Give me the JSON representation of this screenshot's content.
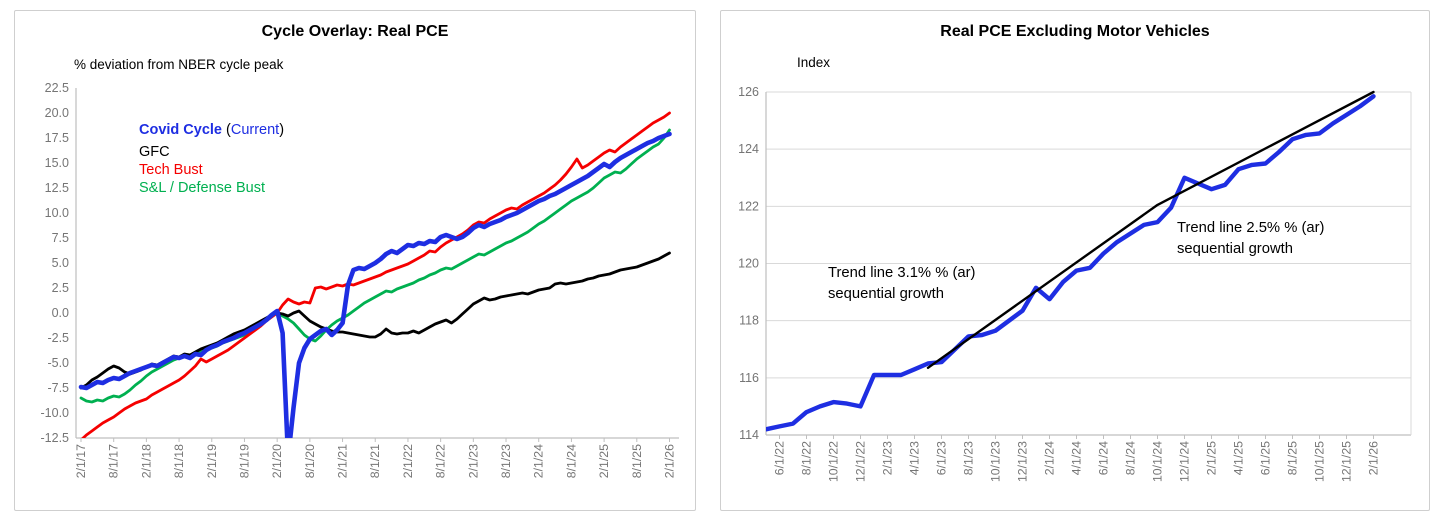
{
  "page": {
    "background": "#ffffff"
  },
  "colors": {
    "covid_blue": "#1E2EE2",
    "gfc_black": "#000000",
    "tech_red": "#F50000",
    "sl_green": "#00B050",
    "axis_line": "#bfbfbf",
    "gridline": "#d9d9d9",
    "tick_label": "#757575"
  },
  "chart_data": [
    {
      "type": "line",
      "title": "Cycle Overlay: Real PCE",
      "axis_note": "% deviation from NBER cycle peak",
      "grid": false,
      "legend_position": "inside-top-left",
      "y_range": [
        -12.5,
        22.5
      ],
      "y_ticks": [
        "22.5",
        "20.0",
        "17.5",
        "15.0",
        "12.5",
        "10.0",
        "7.5",
        "5.0",
        "2.5",
        "0.0",
        "-2.5",
        "-5.0",
        "-7.5",
        "-10.0",
        "-12.5"
      ],
      "x_tick_labels": [
        "2/1/17",
        "8/1/17",
        "2/1/18",
        "8/1/18",
        "2/1/19",
        "8/1/19",
        "2/1/20",
        "8/1/20",
        "2/1/21",
        "8/1/21",
        "2/1/22",
        "8/1/22",
        "2/1/23",
        "8/1/23",
        "2/1/24",
        "8/1/24",
        "2/1/25",
        "8/1/25",
        "2/1/26"
      ],
      "x_unit": "monthly from 2/1/17 to 2/1/26",
      "legend": [
        {
          "parts": [
            {
              "text": "Covid Cycle",
              "color": "#1E2EE2",
              "bold": true
            },
            {
              "text": " (",
              "color": "#000000"
            },
            {
              "text": "Current",
              "color": "#1E2EE2"
            },
            {
              "text": ")",
              "color": "#000000"
            }
          ]
        },
        {
          "parts": [
            {
              "text": "GFC",
              "color": "#000000"
            }
          ]
        },
        {
          "parts": [
            {
              "text": "Tech Bust",
              "color": "#F50000"
            }
          ]
        },
        {
          "parts": [
            {
              "text": "S&L / Defense Bust",
              "color": "#00B050"
            }
          ]
        }
      ],
      "series": [
        {
          "name": "S&L / Defense Bust",
          "color": "#00B050",
          "values": [
            -8.5,
            -8.8,
            -8.9,
            -8.7,
            -8.8,
            -8.5,
            -8.3,
            -8.4,
            -8.1,
            -7.7,
            -7.2,
            -6.8,
            -6.3,
            -5.9,
            -5.6,
            -5.3,
            -5.0,
            -4.7,
            -4.5,
            -4.2,
            -4.3,
            -4.0,
            -3.8,
            -3.6,
            -3.5,
            -3.3,
            -3.0,
            -2.8,
            -2.6,
            -2.4,
            -2.2,
            -1.9,
            -1.5,
            -1.1,
            -0.6,
            -0.2,
            0.0,
            -0.3,
            -0.6,
            -1.0,
            -1.6,
            -2.2,
            -2.6,
            -2.8,
            -2.3,
            -1.7,
            -1.2,
            -0.8,
            -0.5,
            -0.2,
            0.2,
            0.6,
            1.0,
            1.3,
            1.6,
            1.9,
            2.2,
            2.1,
            2.4,
            2.6,
            2.8,
            3.0,
            3.3,
            3.5,
            3.8,
            4.0,
            4.3,
            4.5,
            4.4,
            4.7,
            5.0,
            5.3,
            5.6,
            5.9,
            5.8,
            6.1,
            6.4,
            6.7,
            7.0,
            7.2,
            7.5,
            7.8,
            8.1,
            8.5,
            8.9,
            9.2,
            9.6,
            10.0,
            10.4,
            10.8,
            11.2,
            11.5,
            11.8,
            12.1,
            12.5,
            13.0,
            13.5,
            13.8,
            14.1,
            14.0,
            14.4,
            14.9,
            15.4,
            15.8,
            16.2,
            16.6,
            16.9,
            17.5,
            18.3
          ]
        },
        {
          "name": "GFC",
          "color": "#000000",
          "values": [
            -7.5,
            -7.2,
            -6.7,
            -6.4,
            -6.0,
            -5.6,
            -5.3,
            -5.5,
            -5.9,
            -6.1,
            -5.9,
            -5.7,
            -5.4,
            -5.1,
            -5.2,
            -4.9,
            -4.6,
            -4.3,
            -4.4,
            -4.1,
            -4.2,
            -3.9,
            -3.6,
            -3.4,
            -3.2,
            -3.0,
            -2.7,
            -2.4,
            -2.1,
            -1.9,
            -1.7,
            -1.4,
            -1.1,
            -0.8,
            -0.5,
            -0.2,
            0.0,
            -0.1,
            -0.3,
            0.0,
            0.2,
            -0.3,
            -0.8,
            -1.1,
            -1.4,
            -1.6,
            -1.8,
            -1.9,
            -1.9,
            -2.0,
            -2.1,
            -2.2,
            -2.3,
            -2.4,
            -2.4,
            -2.1,
            -1.6,
            -2.0,
            -2.1,
            -2.0,
            -2.0,
            -1.8,
            -2.0,
            -1.7,
            -1.4,
            -1.1,
            -0.9,
            -0.7,
            -1.0,
            -0.6,
            -0.1,
            0.4,
            0.9,
            1.2,
            1.5,
            1.3,
            1.4,
            1.6,
            1.7,
            1.8,
            1.9,
            2.0,
            1.9,
            2.1,
            2.3,
            2.4,
            2.5,
            2.9,
            3.0,
            2.9,
            3.0,
            3.1,
            3.2,
            3.4,
            3.5,
            3.7,
            3.8,
            3.9,
            4.1,
            4.3,
            4.4,
            4.5,
            4.6,
            4.8,
            5.0,
            5.2,
            5.4,
            5.7,
            6.0
          ]
        },
        {
          "name": "Tech Bust",
          "color": "#F50000",
          "values": [
            -12.7,
            -12.2,
            -11.8,
            -11.4,
            -11.0,
            -10.7,
            -10.4,
            -10.0,
            -9.6,
            -9.3,
            -9.0,
            -8.8,
            -8.6,
            -8.2,
            -7.9,
            -7.6,
            -7.3,
            -7.0,
            -6.7,
            -6.3,
            -5.8,
            -5.3,
            -4.6,
            -4.9,
            -4.6,
            -4.3,
            -4.0,
            -3.7,
            -3.3,
            -2.9,
            -2.5,
            -2.1,
            -1.7,
            -1.3,
            -0.8,
            -0.4,
            0.0,
            0.8,
            1.4,
            1.1,
            0.9,
            1.1,
            1.0,
            2.5,
            2.6,
            2.4,
            2.6,
            2.8,
            2.7,
            2.9,
            2.8,
            3.0,
            3.2,
            3.4,
            3.6,
            3.8,
            4.1,
            4.3,
            4.5,
            4.7,
            4.9,
            5.2,
            5.5,
            5.8,
            6.2,
            6.1,
            6.6,
            7.0,
            7.3,
            7.6,
            7.9,
            8.3,
            8.8,
            9.1,
            9.0,
            9.4,
            9.7,
            10.0,
            10.3,
            10.5,
            10.4,
            10.8,
            11.1,
            11.4,
            11.7,
            12.0,
            12.4,
            12.8,
            13.3,
            13.9,
            14.6,
            15.4,
            14.5,
            14.8,
            15.2,
            15.6,
            16.0,
            16.3,
            16.1,
            16.6,
            17.0,
            17.4,
            17.8,
            18.2,
            18.6,
            19.0,
            19.3,
            19.6,
            20.0
          ]
        },
        {
          "name": "Covid Cycle (Current)",
          "color": "#1E2EE2",
          "values": [
            -7.4,
            -7.5,
            -7.2,
            -6.9,
            -7.0,
            -6.7,
            -6.5,
            -6.6,
            -6.3,
            -6.0,
            -5.8,
            -5.6,
            -5.4,
            -5.2,
            -5.3,
            -5.0,
            -4.7,
            -4.4,
            -4.5,
            -4.3,
            -4.5,
            -4.1,
            -4.2,
            -3.7,
            -3.4,
            -3.2,
            -2.9,
            -2.7,
            -2.5,
            -2.2,
            -2.0,
            -1.7,
            -1.4,
            -1.1,
            -0.7,
            -0.2,
            0.2,
            -2.0,
            -14.5,
            -9.5,
            -5.0,
            -3.5,
            -2.6,
            -2.2,
            -1.8,
            -1.6,
            -2.2,
            -1.7,
            -1.0,
            2.8,
            4.3,
            4.5,
            4.4,
            4.7,
            5.0,
            5.4,
            5.9,
            6.2,
            6.0,
            6.4,
            6.8,
            6.7,
            7.0,
            6.9,
            7.2,
            7.1,
            7.6,
            7.8,
            7.6,
            7.4,
            7.6,
            8.0,
            8.5,
            8.8,
            8.6,
            8.9,
            9.1,
            9.3,
            9.6,
            9.8,
            10.0,
            10.3,
            10.6,
            10.9,
            11.2,
            11.4,
            11.7,
            11.9,
            12.2,
            12.5,
            12.8,
            13.1,
            13.4,
            13.7,
            14.1,
            14.5,
            14.9,
            14.6,
            15.1,
            15.5,
            15.8,
            16.1,
            16.4,
            16.7,
            17.0,
            17.2,
            17.5,
            17.7,
            17.9
          ]
        }
      ]
    },
    {
      "type": "line",
      "title": "Real PCE Excluding Motor Vehicles",
      "axis_note": "Index",
      "grid": true,
      "y_range": [
        114,
        126
      ],
      "y_ticks": [
        "126",
        "124",
        "122",
        "120",
        "118",
        "116",
        "114"
      ],
      "x_tick_labels": [
        "6/1/22",
        "8/1/22",
        "10/1/22",
        "12/1/22",
        "2/1/23",
        "4/1/23",
        "6/1/23",
        "8/1/23",
        "10/1/23",
        "12/1/23",
        "2/1/24",
        "4/1/24",
        "6/1/24",
        "8/1/24",
        "10/1/24",
        "12/1/24",
        "2/1/25",
        "4/1/25",
        "6/1/25",
        "8/1/25",
        "10/1/25",
        "12/1/25",
        "2/1/26"
      ],
      "x_unit": "monthly from 5/1/22 to 2/1/26",
      "series": [
        {
          "name": "Real PCE ex motor vehicles",
          "color": "#1E2EE2",
          "values": [
            114.2,
            114.3,
            114.4,
            114.8,
            115.0,
            115.15,
            115.1,
            115.0,
            116.1,
            116.1,
            116.1,
            116.3,
            116.5,
            116.55,
            117.0,
            117.45,
            117.5,
            117.65,
            118.0,
            118.35,
            119.15,
            118.75,
            119.35,
            119.75,
            119.85,
            120.35,
            120.75,
            121.05,
            121.35,
            121.45,
            121.95,
            123.0,
            122.8,
            122.6,
            122.75,
            123.3,
            123.45,
            123.5,
            123.9,
            124.35,
            124.5,
            124.55,
            124.9,
            125.2,
            125.5,
            125.85
          ]
        }
      ],
      "trend_line": {
        "color": "#000000",
        "points": [
          {
            "index": 12,
            "value": 116.35
          },
          {
            "index": 29,
            "value": 122.05
          },
          {
            "index": 45,
            "value": 126.0
          }
        ]
      },
      "annotations": [
        {
          "line1": "Trend line 3.1% % (ar)",
          "line2": "sequential growth"
        },
        {
          "line1": "Trend line 2.5% % (ar)",
          "line2": "sequential growth"
        }
      ]
    }
  ]
}
